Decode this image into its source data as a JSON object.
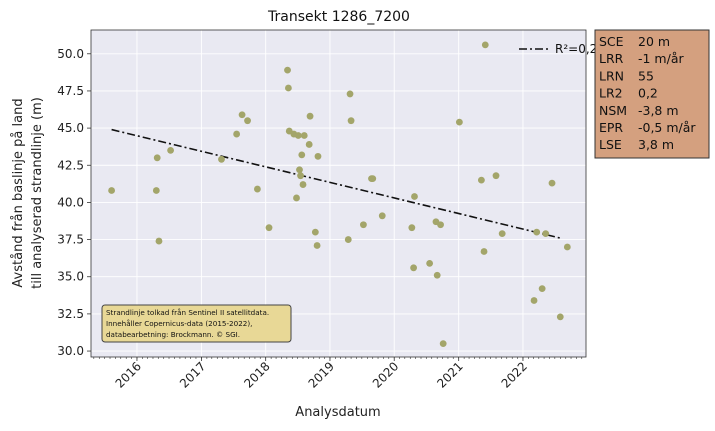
{
  "chart_data": {
    "type": "scatter",
    "title": "Transekt 1286_7200",
    "xlabel": "Analysdatum",
    "ylabel_lines": [
      "Avstånd från baslinje på land",
      "till analyserad strandlinje (m)"
    ],
    "xlim": [
      "2015-04-15",
      "2022-12-25"
    ],
    "ylim": [
      29.6,
      51.6
    ],
    "x_ticks": [
      "2016-01-01",
      "2017-01-01",
      "2018-01-01",
      "2019-01-01",
      "2020-01-01",
      "2021-01-01",
      "2022-01-01"
    ],
    "x_tick_labels": [
      "2016",
      "2017",
      "2018",
      "2019",
      "2020",
      "2021",
      "2022"
    ],
    "y_ticks": [
      30.0,
      32.5,
      35.0,
      37.5,
      40.0,
      42.5,
      45.0,
      47.5,
      50.0
    ],
    "y_tick_labels": [
      "30.0",
      "32.5",
      "35.0",
      "37.5",
      "40.0",
      "42.5",
      "45.0",
      "47.5",
      "50.0"
    ],
    "grid": true,
    "point_color": "#a3a56a",
    "trend_color": "#111111",
    "points": [
      {
        "x": "2015-08-10",
        "y": 40.8
      },
      {
        "x": "2016-04-20",
        "y": 40.8
      },
      {
        "x": "2016-04-25",
        "y": 43.0
      },
      {
        "x": "2016-05-05",
        "y": 37.4
      },
      {
        "x": "2016-07-10",
        "y": 43.5
      },
      {
        "x": "2017-04-25",
        "y": 42.9
      },
      {
        "x": "2017-07-20",
        "y": 44.6
      },
      {
        "x": "2017-08-20",
        "y": 45.9
      },
      {
        "x": "2017-09-20",
        "y": 45.5
      },
      {
        "x": "2017-11-15",
        "y": 40.9
      },
      {
        "x": "2018-01-20",
        "y": 38.3
      },
      {
        "x": "2018-05-05",
        "y": 48.9
      },
      {
        "x": "2018-05-10",
        "y": 47.7
      },
      {
        "x": "2018-05-15",
        "y": 44.8
      },
      {
        "x": "2018-06-10",
        "y": 44.6
      },
      {
        "x": "2018-06-25",
        "y": 40.3
      },
      {
        "x": "2018-07-05",
        "y": 44.5
      },
      {
        "x": "2018-07-12",
        "y": 42.2
      },
      {
        "x": "2018-07-18",
        "y": 41.8
      },
      {
        "x": "2018-07-25",
        "y": 43.2
      },
      {
        "x": "2018-08-01",
        "y": 41.2
      },
      {
        "x": "2018-08-08",
        "y": 44.5
      },
      {
        "x": "2018-09-10",
        "y": 45.8
      },
      {
        "x": "2018-09-05",
        "y": 43.9
      },
      {
        "x": "2018-10-10",
        "y": 38.0
      },
      {
        "x": "2018-10-25",
        "y": 43.1
      },
      {
        "x": "2018-10-20",
        "y": 37.1
      },
      {
        "x": "2019-04-15",
        "y": 37.5
      },
      {
        "x": "2019-04-25",
        "y": 47.3
      },
      {
        "x": "2019-05-01",
        "y": 45.5
      },
      {
        "x": "2019-07-10",
        "y": 38.5
      },
      {
        "x": "2019-08-25",
        "y": 41.6
      },
      {
        "x": "2019-09-01",
        "y": 41.6
      },
      {
        "x": "2019-10-25",
        "y": 39.1
      },
      {
        "x": "2020-04-10",
        "y": 38.3
      },
      {
        "x": "2020-04-20",
        "y": 35.6
      },
      {
        "x": "2020-04-25",
        "y": 40.4
      },
      {
        "x": "2020-07-20",
        "y": 35.9
      },
      {
        "x": "2020-08-25",
        "y": 38.7
      },
      {
        "x": "2020-09-01",
        "y": 35.1
      },
      {
        "x": "2020-09-20",
        "y": 38.5
      },
      {
        "x": "2020-10-05",
        "y": 30.5
      },
      {
        "x": "2021-01-05",
        "y": 45.4
      },
      {
        "x": "2021-05-10",
        "y": 41.5
      },
      {
        "x": "2021-06-01",
        "y": 50.6
      },
      {
        "x": "2021-05-25",
        "y": 36.7
      },
      {
        "x": "2021-08-01",
        "y": 41.8
      },
      {
        "x": "2021-09-05",
        "y": 37.9
      },
      {
        "x": "2022-03-05",
        "y": 33.4
      },
      {
        "x": "2022-03-20",
        "y": 38.0
      },
      {
        "x": "2022-04-20",
        "y": 34.2
      },
      {
        "x": "2022-05-10",
        "y": 37.9
      },
      {
        "x": "2022-06-15",
        "y": 41.3
      },
      {
        "x": "2022-08-01",
        "y": 32.3
      },
      {
        "x": "2022-09-10",
        "y": 37.0
      }
    ],
    "trend": {
      "label": "R²=0,2",
      "start": {
        "x": "2015-08-10",
        "y": 44.9
      },
      "end": {
        "x": "2022-08-01",
        "y": 37.6
      }
    },
    "legend_position": "top-right",
    "stats": [
      {
        "key": "SCE",
        "value": "20 m"
      },
      {
        "key": "LRR",
        "value": "-1 m/år"
      },
      {
        "key": "LRN",
        "value": "55"
      },
      {
        "key": "LR2",
        "value": "0,2"
      },
      {
        "key": "NSM",
        "value": "-3,8 m"
      },
      {
        "key": "EPR",
        "value": "-0,5 m/år"
      },
      {
        "key": "LSE",
        "value": "3,8 m"
      }
    ],
    "stats_colors": {
      "fill": "#d4a07f",
      "stroke": "#333333"
    },
    "note_lines": [
      "Strandlinje tolkad från Sentinel II satellitdata.",
      "Innehåller Copernicus-data (2015-2022),",
      "databearbetning: Brockmann. © SGI."
    ],
    "note_colors": {
      "fill": "#e8d896",
      "stroke": "#444444"
    },
    "plot_background": "#e9e9f2"
  }
}
